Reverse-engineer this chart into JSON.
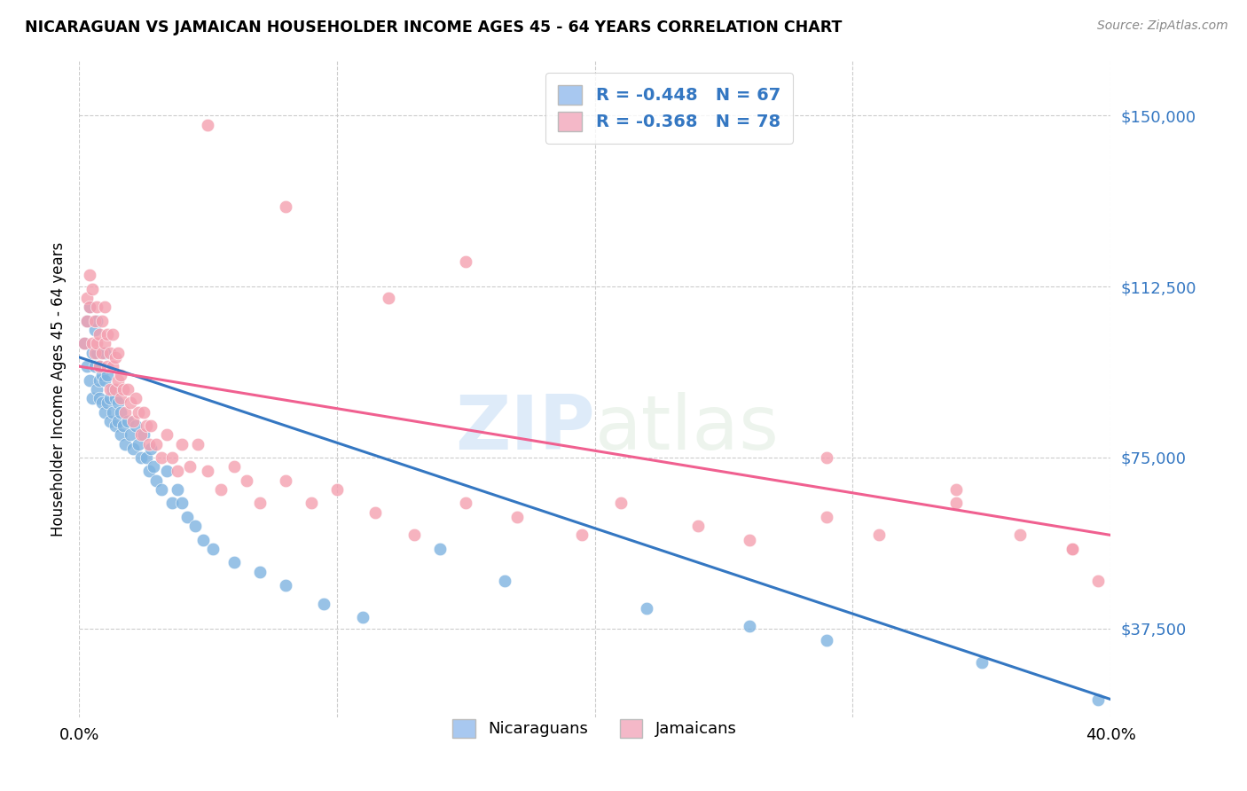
{
  "title": "NICARAGUAN VS JAMAICAN HOUSEHOLDER INCOME AGES 45 - 64 YEARS CORRELATION CHART",
  "source": "Source: ZipAtlas.com",
  "ylabel": "Householder Income Ages 45 - 64 years",
  "xlim": [
    0.0,
    0.4
  ],
  "ylim": [
    18000,
    162000
  ],
  "yticks": [
    37500,
    75000,
    112500,
    150000
  ],
  "ytick_labels": [
    "$37,500",
    "$75,000",
    "$112,500",
    "$150,000"
  ],
  "xticks": [
    0.0,
    0.1,
    0.2,
    0.3,
    0.4
  ],
  "xtick_labels": [
    "0.0%",
    "",
    "",
    "",
    "40.0%"
  ],
  "nicaraguan_color": "#7eb3e0",
  "jamaican_color": "#f4a0b0",
  "nicaraguan_line_color": "#3477c2",
  "jamaican_line_color": "#f06090",
  "legend_box_blue": "#a8c8f0",
  "legend_box_pink": "#f4b8c8",
  "R_nicaraguan": -0.448,
  "N_nicaraguan": 67,
  "R_jamaican": -0.368,
  "N_jamaican": 78,
  "watermark_zip": "ZIP",
  "watermark_atlas": "atlas",
  "background_color": "#ffffff",
  "nic_line_x": [
    0.0,
    0.4
  ],
  "nic_line_y": [
    97000,
    22000
  ],
  "jam_line_x": [
    0.0,
    0.4
  ],
  "jam_line_y": [
    95000,
    58000
  ],
  "nicaraguan_x": [
    0.002,
    0.003,
    0.003,
    0.004,
    0.004,
    0.005,
    0.005,
    0.006,
    0.006,
    0.007,
    0.007,
    0.007,
    0.008,
    0.008,
    0.008,
    0.009,
    0.009,
    0.01,
    0.01,
    0.01,
    0.011,
    0.011,
    0.012,
    0.012,
    0.013,
    0.013,
    0.014,
    0.014,
    0.015,
    0.015,
    0.016,
    0.016,
    0.017,
    0.018,
    0.019,
    0.02,
    0.021,
    0.022,
    0.023,
    0.024,
    0.025,
    0.026,
    0.027,
    0.028,
    0.029,
    0.03,
    0.032,
    0.034,
    0.036,
    0.038,
    0.04,
    0.042,
    0.045,
    0.048,
    0.052,
    0.06,
    0.07,
    0.08,
    0.095,
    0.11,
    0.14,
    0.165,
    0.22,
    0.26,
    0.29,
    0.35,
    0.395
  ],
  "nicaraguan_y": [
    100000,
    95000,
    105000,
    92000,
    108000,
    88000,
    98000,
    95000,
    103000,
    90000,
    98000,
    105000,
    92000,
    88000,
    95000,
    87000,
    93000,
    85000,
    92000,
    98000,
    87000,
    93000,
    88000,
    83000,
    90000,
    85000,
    82000,
    88000,
    83000,
    87000,
    80000,
    85000,
    82000,
    78000,
    83000,
    80000,
    77000,
    82000,
    78000,
    75000,
    80000,
    75000,
    72000,
    77000,
    73000,
    70000,
    68000,
    72000,
    65000,
    68000,
    65000,
    62000,
    60000,
    57000,
    55000,
    52000,
    50000,
    47000,
    43000,
    40000,
    55000,
    48000,
    42000,
    38000,
    35000,
    30000,
    22000
  ],
  "jamaican_x": [
    0.002,
    0.003,
    0.003,
    0.004,
    0.004,
    0.005,
    0.005,
    0.006,
    0.006,
    0.007,
    0.007,
    0.008,
    0.008,
    0.009,
    0.009,
    0.01,
    0.01,
    0.011,
    0.011,
    0.012,
    0.012,
    0.013,
    0.013,
    0.014,
    0.014,
    0.015,
    0.015,
    0.016,
    0.016,
    0.017,
    0.018,
    0.019,
    0.02,
    0.021,
    0.022,
    0.023,
    0.024,
    0.025,
    0.026,
    0.027,
    0.028,
    0.03,
    0.032,
    0.034,
    0.036,
    0.038,
    0.04,
    0.043,
    0.046,
    0.05,
    0.055,
    0.06,
    0.065,
    0.07,
    0.08,
    0.09,
    0.1,
    0.115,
    0.13,
    0.15,
    0.17,
    0.195,
    0.21,
    0.24,
    0.26,
    0.29,
    0.31,
    0.34,
    0.365,
    0.385,
    0.395,
    0.15,
    0.29,
    0.34,
    0.385,
    0.05,
    0.08,
    0.12
  ],
  "jamaican_y": [
    100000,
    110000,
    105000,
    115000,
    108000,
    100000,
    112000,
    105000,
    98000,
    108000,
    100000,
    102000,
    95000,
    105000,
    98000,
    100000,
    108000,
    95000,
    102000,
    98000,
    90000,
    95000,
    102000,
    90000,
    97000,
    92000,
    98000,
    88000,
    93000,
    90000,
    85000,
    90000,
    87000,
    83000,
    88000,
    85000,
    80000,
    85000,
    82000,
    78000,
    82000,
    78000,
    75000,
    80000,
    75000,
    72000,
    78000,
    73000,
    78000,
    72000,
    68000,
    73000,
    70000,
    65000,
    70000,
    65000,
    68000,
    63000,
    58000,
    65000,
    62000,
    58000,
    65000,
    60000,
    57000,
    62000,
    58000,
    65000,
    58000,
    55000,
    48000,
    118000,
    75000,
    68000,
    55000,
    148000,
    130000,
    110000
  ]
}
